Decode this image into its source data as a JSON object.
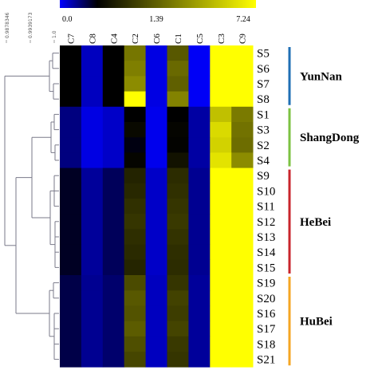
{
  "chart_data": {
    "type": "heatmap",
    "columns": [
      "C7",
      "C8",
      "C4",
      "C2",
      "C6",
      "C1",
      "C5",
      "C3",
      "C9"
    ],
    "rows": [
      "S5",
      "S6",
      "S7",
      "S8",
      "S1",
      "S3",
      "S2",
      "S4",
      "S9",
      "S10",
      "S11",
      "S12",
      "S13",
      "S14",
      "S15",
      "S19",
      "S20",
      "S16",
      "S17",
      "S18",
      "S21"
    ],
    "color_scale": {
      "ticks": [
        "0.0",
        "1.39",
        "7.24"
      ],
      "stops": [
        {
          "value": 0.0,
          "color": "#0000ff"
        },
        {
          "value": 1.39,
          "color": "#000000"
        },
        {
          "value": 7.24,
          "color": "#ffff00"
        }
      ]
    },
    "values": [
      [
        1.39,
        0.35,
        1.39,
        4.1,
        0.15,
        3.4,
        0.05,
        7.24,
        7.24
      ],
      [
        1.39,
        0.35,
        1.39,
        4.3,
        0.15,
        3.8,
        0.05,
        7.24,
        7.24
      ],
      [
        1.39,
        0.35,
        1.39,
        4.6,
        0.15,
        3.6,
        0.05,
        7.24,
        7.24
      ],
      [
        1.39,
        0.35,
        1.39,
        7.24,
        0.15,
        4.4,
        0.05,
        7.24,
        7.24
      ],
      [
        0.7,
        0.15,
        0.3,
        1.39,
        0.1,
        1.39,
        0.5,
        5.8,
        4.2
      ],
      [
        0.7,
        0.15,
        0.3,
        1.6,
        0.1,
        1.5,
        0.5,
        6.4,
        4.0
      ],
      [
        0.7,
        0.15,
        0.3,
        1.3,
        0.1,
        1.45,
        0.5,
        6.2,
        3.9
      ],
      [
        0.7,
        0.15,
        0.3,
        1.5,
        0.1,
        1.8,
        0.5,
        6.6,
        4.6
      ],
      [
        1.2,
        0.55,
        0.9,
        2.2,
        0.3,
        2.4,
        0.6,
        7.24,
        7.24
      ],
      [
        1.2,
        0.55,
        0.9,
        2.3,
        0.3,
        2.5,
        0.6,
        7.24,
        7.24
      ],
      [
        1.2,
        0.55,
        0.9,
        2.5,
        0.3,
        2.6,
        0.6,
        7.24,
        7.24
      ],
      [
        1.2,
        0.55,
        0.9,
        2.6,
        0.3,
        2.7,
        0.6,
        7.24,
        7.24
      ],
      [
        1.2,
        0.55,
        0.9,
        2.45,
        0.3,
        2.55,
        0.6,
        7.24,
        7.24
      ],
      [
        1.2,
        0.55,
        0.9,
        2.35,
        0.3,
        2.45,
        0.6,
        7.24,
        7.24
      ],
      [
        1.2,
        0.55,
        0.9,
        2.25,
        0.3,
        2.4,
        0.6,
        7.24,
        7.24
      ],
      [
        1.0,
        0.6,
        0.8,
        3.1,
        0.35,
        2.6,
        0.55,
        7.24,
        7.24
      ],
      [
        1.0,
        0.6,
        0.8,
        3.4,
        0.35,
        2.9,
        0.55,
        7.24,
        7.24
      ],
      [
        1.0,
        0.6,
        0.8,
        3.3,
        0.35,
        2.8,
        0.55,
        7.24,
        7.24
      ],
      [
        1.0,
        0.6,
        0.8,
        3.5,
        0.35,
        2.95,
        0.55,
        7.24,
        7.24
      ],
      [
        1.0,
        0.6,
        0.8,
        3.2,
        0.35,
        2.7,
        0.55,
        7.24,
        7.24
      ],
      [
        1.0,
        0.6,
        0.8,
        3.0,
        0.35,
        2.6,
        0.55,
        7.24,
        7.24
      ]
    ],
    "groups": [
      {
        "name": "YunNan",
        "rows": [
          "S5",
          "S6",
          "S7",
          "S8"
        ],
        "color": "#1f6fb5"
      },
      {
        "name": "ShangDong",
        "rows": [
          "S1",
          "S3",
          "S2",
          "S4"
        ],
        "color": "#7cc242"
      },
      {
        "name": "HeBei",
        "rows": [
          "S9",
          "S10",
          "S11",
          "S12",
          "S13",
          "S14",
          "S15"
        ],
        "color": "#c9252c"
      },
      {
        "name": "HuBei",
        "rows": [
          "S19",
          "S20",
          "S16",
          "S17",
          "S18",
          "S21"
        ],
        "color": "#f5a623"
      }
    ],
    "dendrogram_axis_labels": [
      "0.9878346",
      "0.9939173",
      "1.0"
    ]
  }
}
